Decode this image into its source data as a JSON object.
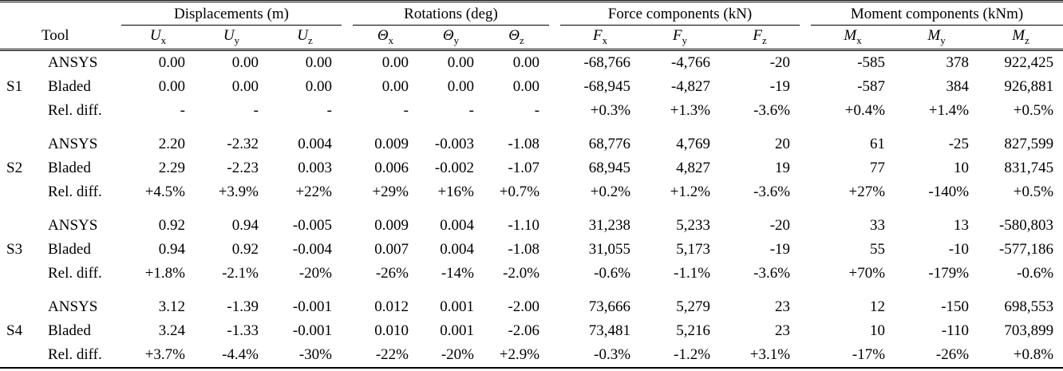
{
  "table": {
    "tool_col_header": "Tool",
    "groups": [
      {
        "label": "Displacements (m)"
      },
      {
        "label": "Rotations (deg)"
      },
      {
        "label": "Force components (kN)"
      },
      {
        "label": "Moment components (kNm)"
      }
    ],
    "sub_headers": [
      {
        "base": "U",
        "sub": "x"
      },
      {
        "base": "U",
        "sub": "y"
      },
      {
        "base": "U",
        "sub": "z"
      },
      {
        "base": "Θ",
        "sub": "x"
      },
      {
        "base": "Θ",
        "sub": "y"
      },
      {
        "base": "Θ",
        "sub": "z"
      },
      {
        "base": "F",
        "sub": "x"
      },
      {
        "base": "F",
        "sub": "y"
      },
      {
        "base": "F",
        "sub": "z"
      },
      {
        "base": "M",
        "sub": "x"
      },
      {
        "base": "M",
        "sub": "y"
      },
      {
        "base": "M",
        "sub": "z"
      }
    ],
    "sections": [
      {
        "label": "S1",
        "rows": [
          {
            "tool": "ANSYS",
            "values": [
              "0.00",
              "0.00",
              "0.00",
              "0.00",
              "0.00",
              "0.00",
              "-68,766",
              "-4,766",
              "-20",
              "-585",
              "378",
              "922,425"
            ]
          },
          {
            "tool": "Bladed",
            "values": [
              "0.00",
              "0.00",
              "0.00",
              "0.00",
              "0.00",
              "0.00",
              "-68,945",
              "-4,827",
              "-19",
              "-587",
              "384",
              "926,881"
            ]
          },
          {
            "tool": "Rel. diff.",
            "values": [
              "-",
              "-",
              "-",
              "-",
              "-",
              "-",
              "+0.3%",
              "+1.3%",
              "-3.6%",
              "+0.4%",
              "+1.4%",
              "+0.5%"
            ]
          }
        ]
      },
      {
        "label": "S2",
        "rows": [
          {
            "tool": "ANSYS",
            "values": [
              "2.20",
              "-2.32",
              "0.004",
              "0.009",
              "-0.003",
              "-1.08",
              "68,776",
              "4,769",
              "20",
              "61",
              "-25",
              "827,599"
            ]
          },
          {
            "tool": "Bladed",
            "values": [
              "2.29",
              "-2.23",
              "0.003",
              "0.006",
              "-0.002",
              "-1.07",
              "68,945",
              "4,827",
              "19",
              "77",
              "10",
              "831,745"
            ]
          },
          {
            "tool": "Rel. diff.",
            "values": [
              "+4.5%",
              "+3.9%",
              "+22%",
              "+29%",
              "+16%",
              "+0.7%",
              "+0.2%",
              "+1.2%",
              "-3.6%",
              "+27%",
              "-140%",
              "+0.5%"
            ]
          }
        ]
      },
      {
        "label": "S3",
        "rows": [
          {
            "tool": "ANSYS",
            "values": [
              "0.92",
              "0.94",
              "-0.005",
              "0.009",
              "0.004",
              "-1.10",
              "31,238",
              "5,233",
              "-20",
              "33",
              "13",
              "-580,803"
            ]
          },
          {
            "tool": "Bladed",
            "values": [
              "0.94",
              "0.92",
              "-0.004",
              "0.007",
              "0.004",
              "-1.08",
              "31,055",
              "5,173",
              "-19",
              "55",
              "-10",
              "-577,186"
            ]
          },
          {
            "tool": "Rel. diff.",
            "values": [
              "+1.8%",
              "-2.1%",
              "-20%",
              "-26%",
              "-14%",
              "-2.0%",
              "-0.6%",
              "-1.1%",
              "-3.6%",
              "+70%",
              "-179%",
              "-0.6%"
            ]
          }
        ]
      },
      {
        "label": "S4",
        "rows": [
          {
            "tool": "ANSYS",
            "values": [
              "3.12",
              "-1.39",
              "-0.001",
              "0.012",
              "0.001",
              "-2.00",
              "73,666",
              "5,279",
              "23",
              "12",
              "-150",
              "698,553"
            ]
          },
          {
            "tool": "Bladed",
            "values": [
              "3.24",
              "-1.33",
              "-0.001",
              "0.010",
              "0.001",
              "-2.06",
              "73,481",
              "5,216",
              "23",
              "10",
              "-110",
              "703,899"
            ]
          },
          {
            "tool": "Rel. diff.",
            "values": [
              "+3.7%",
              "-4.4%",
              "-30%",
              "-22%",
              "-20%",
              "+2.9%",
              "-0.3%",
              "-1.2%",
              "+3.1%",
              "-17%",
              "-26%",
              "+0.8%"
            ]
          }
        ]
      }
    ]
  }
}
